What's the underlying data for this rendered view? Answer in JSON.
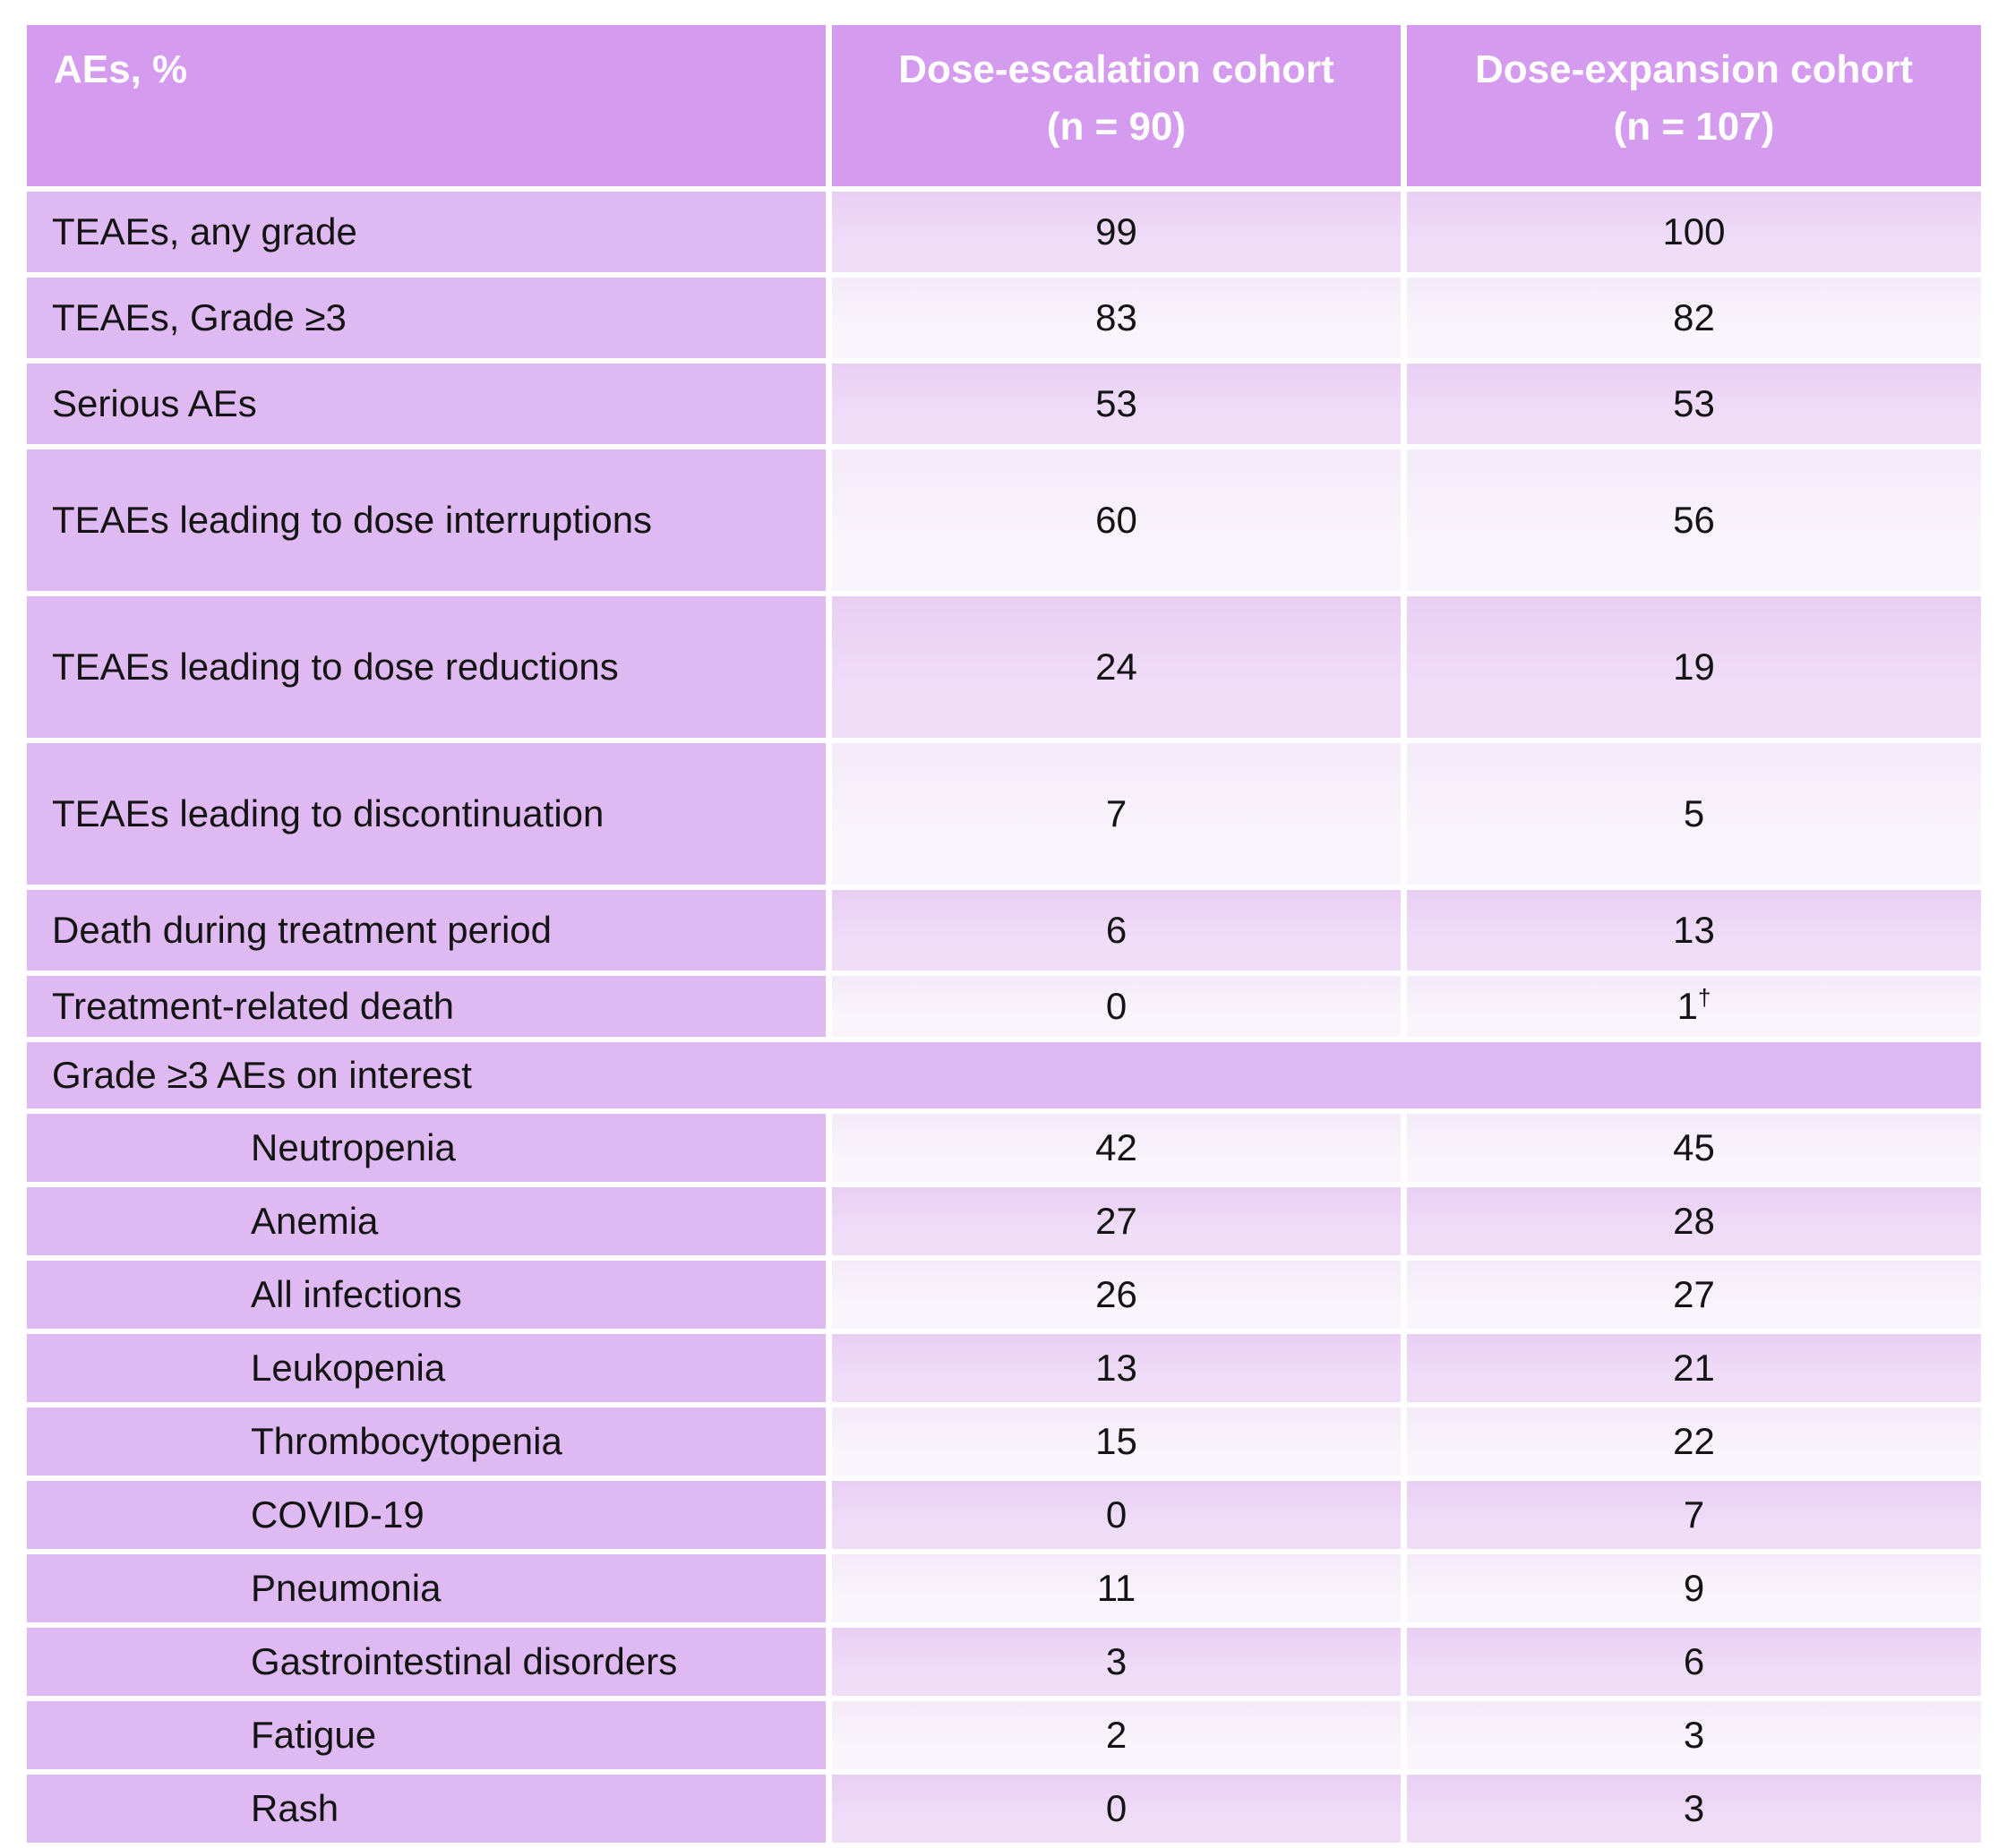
{
  "colors": {
    "header_bg": "#d59bee",
    "header_text": "#ffffff",
    "label_bg": "#deb9f2",
    "value_lav_top": "#e9cef4",
    "value_lav_bottom": "#f0def8",
    "value_light_top": "#f4eaf9",
    "value_light_bottom": "#faf5fc",
    "body_text": "#141414",
    "page_bg": "#ffffff"
  },
  "table": {
    "columns": [
      {
        "title": "AEs, %",
        "subtitle": ""
      },
      {
        "title": "Dose-escalation cohort",
        "subtitle": "(n = 90)"
      },
      {
        "title": "Dose-expansion cohort",
        "subtitle": "(n = 107)"
      }
    ],
    "rows": [
      {
        "label": "TEAEs, any grade",
        "esc": "99",
        "exp": "100"
      },
      {
        "label": "TEAEs, Grade ≥3",
        "esc": "83",
        "exp": "82"
      },
      {
        "label": "Serious AEs",
        "esc": "53",
        "exp": "53"
      },
      {
        "label": "TEAEs leading to dose interruptions",
        "esc": "60",
        "exp": "56",
        "size": "tall"
      },
      {
        "label": "TEAEs leading to dose reductions",
        "esc": "24",
        "exp": "19",
        "size": "tall"
      },
      {
        "label": "TEAEs leading to discontinuation",
        "esc": "7",
        "exp": "5",
        "size": "tall"
      },
      {
        "label": "Death during treatment period",
        "esc": "6",
        "exp": "13"
      },
      {
        "label": "Treatment-related death",
        "esc": "0",
        "exp": "1",
        "exp_sup": "†",
        "size": "short"
      },
      {
        "label": "Grade ≥3 AEs on interest",
        "section": true
      },
      {
        "label": "Neutropenia",
        "subitem": true,
        "esc": "42",
        "exp": "45"
      },
      {
        "label": "Anemia",
        "subitem": true,
        "esc": "27",
        "exp": "28"
      },
      {
        "label": "All infections",
        "subitem": true,
        "esc": "26",
        "exp": "27"
      },
      {
        "label": "Leukopenia",
        "subitem": true,
        "esc": "13",
        "exp": "21"
      },
      {
        "label": "Thrombocytopenia",
        "subitem": true,
        "esc": "15",
        "exp": "22"
      },
      {
        "label": "COVID-19",
        "subitem": true,
        "esc": "0",
        "exp": "7"
      },
      {
        "label": "Pneumonia",
        "subitem": true,
        "esc": "11",
        "exp": "9"
      },
      {
        "label": "Gastrointestinal disorders",
        "subitem": true,
        "esc": "3",
        "exp": "6"
      },
      {
        "label": "Fatigue",
        "subitem": true,
        "esc": "2",
        "exp": "3"
      },
      {
        "label": "Rash",
        "subitem": true,
        "esc": "0",
        "exp": "3"
      }
    ]
  },
  "chart_data": {
    "type": "table",
    "title": "",
    "columns": [
      "AEs, %",
      "Dose-escalation cohort (n = 90)",
      "Dose-expansion cohort (n = 107)"
    ],
    "section_header": "Grade ≥3 AEs on interest",
    "rows": [
      [
        "TEAEs, any grade",
        99,
        100
      ],
      [
        "TEAEs, Grade ≥3",
        83,
        82
      ],
      [
        "Serious AEs",
        53,
        53
      ],
      [
        "TEAEs leading to dose interruptions",
        60,
        56
      ],
      [
        "TEAEs leading to dose reductions",
        24,
        19
      ],
      [
        "TEAEs leading to discontinuation",
        7,
        5
      ],
      [
        "Death during treatment period",
        6,
        13
      ],
      [
        "Treatment-related death",
        0,
        "1†"
      ],
      [
        "Grade ≥3 AEs on interest",
        null,
        null
      ],
      [
        "Neutropenia",
        42,
        45
      ],
      [
        "Anemia",
        27,
        28
      ],
      [
        "All infections",
        26,
        27
      ],
      [
        "Leukopenia",
        13,
        21
      ],
      [
        "Thrombocytopenia",
        15,
        22
      ],
      [
        "COVID-19",
        0,
        7
      ],
      [
        "Pneumonia",
        11,
        9
      ],
      [
        "Gastrointestinal disorders",
        3,
        6
      ],
      [
        "Fatigue",
        2,
        3
      ],
      [
        "Rash",
        0,
        3
      ]
    ]
  }
}
